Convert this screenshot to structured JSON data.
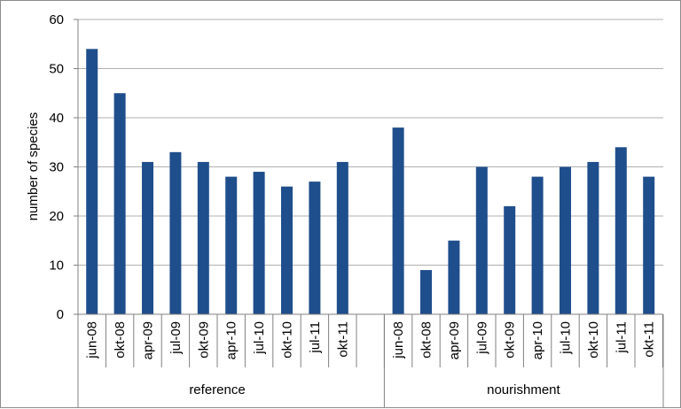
{
  "chart_data": {
    "type": "bar",
    "title": "",
    "ylabel": "number of species",
    "xlabel": "",
    "ylim": [
      0,
      60
    ],
    "yticks": [
      0,
      10,
      20,
      30,
      40,
      50,
      60
    ],
    "grid": true,
    "bar_color": "#1f4e8c",
    "grid_color": "#b0b0b0",
    "groups": [
      {
        "name": "reference",
        "categories": [
          "jun-08",
          "okt-08",
          "apr-09",
          "jul-09",
          "okt-09",
          "apr-10",
          "jul-10",
          "okt-10",
          "jul-11",
          "okt-11"
        ],
        "values": [
          54,
          45,
          31,
          33,
          31,
          28,
          29,
          26,
          27,
          31
        ]
      },
      {
        "name": "nourishment",
        "categories": [
          "jun-08",
          "okt-08",
          "apr-09",
          "jul-09",
          "okt-09",
          "apr-10",
          "jul-10",
          "okt-10",
          "jul-11",
          "okt-11"
        ],
        "values": [
          38,
          9,
          15,
          30,
          22,
          28,
          30,
          31,
          34,
          28
        ]
      }
    ]
  }
}
